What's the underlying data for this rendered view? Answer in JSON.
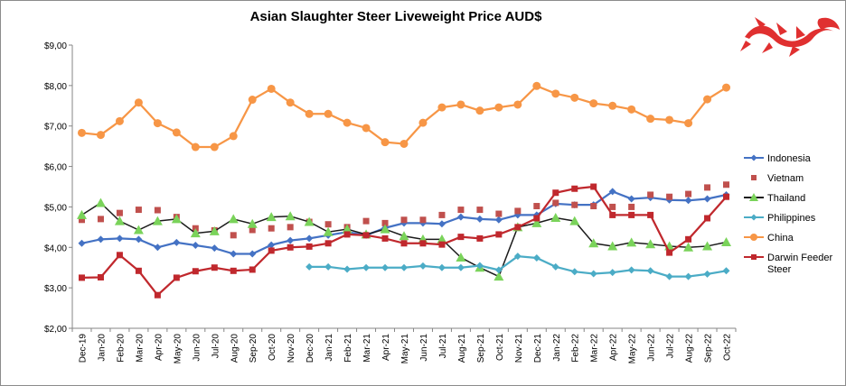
{
  "chart_data": {
    "type": "line",
    "title": "Asian Slaughter Steer Liveweight Price AUD$",
    "xlabel": "",
    "ylabel": "",
    "ylim": [
      2,
      9
    ],
    "ytick_labels": [
      "$2,00",
      "$3,00",
      "$4,00",
      "$5,00",
      "$6,00",
      "$7,00",
      "$8,00",
      "$9,00"
    ],
    "grid": false,
    "legend_position": "right",
    "categories": [
      "Dec-19",
      "Jan-20",
      "Feb-20",
      "Mar-20",
      "Apr-20",
      "May-20",
      "Jun-20",
      "Jul-20",
      "Aug-20",
      "Sep-20",
      "Oct-20",
      "Nov-20",
      "Dec-20",
      "Jan-21",
      "Feb-21",
      "Mar-21",
      "Apr-21",
      "May-21",
      "Jun-21",
      "Jul-21",
      "Aug-21",
      "Sep-21",
      "Oct-21",
      "Nov-21",
      "Dec-21",
      "Jan-22",
      "Feb-22",
      "Mar-22",
      "Apr-22",
      "May-22",
      "Jun-22",
      "Jul-22",
      "Aug-22",
      "Sep-22",
      "Oct-22"
    ],
    "series": [
      {
        "name": "Indonesia",
        "color": "#4472c4",
        "marker": "diamond",
        "line": true,
        "values": [
          4.1,
          4.2,
          4.22,
          4.2,
          4.0,
          4.12,
          4.05,
          3.98,
          3.84,
          3.84,
          4.06,
          4.17,
          4.22,
          4.3,
          4.38,
          4.3,
          4.48,
          4.6,
          4.6,
          4.58,
          4.75,
          4.7,
          4.68,
          4.8,
          4.8,
          5.08,
          5.05,
          5.05,
          5.38,
          5.2,
          5.23,
          5.17,
          5.16,
          5.2,
          5.3
        ]
      },
      {
        "name": "Vietnam",
        "color": "#c0504d",
        "marker": "square",
        "line": false,
        "values": [
          4.68,
          4.7,
          4.85,
          4.93,
          4.92,
          4.75,
          4.47,
          4.42,
          4.3,
          4.43,
          4.47,
          4.5,
          4.63,
          4.57,
          4.5,
          4.65,
          4.6,
          4.68,
          4.68,
          4.8,
          4.93,
          4.93,
          4.83,
          4.9,
          5.02,
          5.1,
          5.05,
          5.02,
          5.0,
          5.0,
          5.3,
          5.25,
          5.32,
          5.48,
          5.55
        ]
      },
      {
        "name": "Thailand",
        "color": "#7ad35a",
        "marker": "triangle",
        "line": true,
        "values": [
          4.8,
          5.1,
          4.65,
          4.43,
          4.65,
          4.7,
          4.35,
          4.4,
          4.7,
          4.58,
          4.75,
          4.77,
          4.63,
          4.38,
          4.45,
          4.32,
          4.45,
          4.28,
          4.2,
          4.2,
          3.75,
          3.5,
          3.28,
          4.5,
          4.6,
          4.73,
          4.65,
          4.1,
          4.03,
          4.12,
          4.08,
          4.03,
          4.0,
          4.03,
          4.13
        ]
      },
      {
        "name": "Philippines",
        "color": "#4bacc6",
        "marker": "diamond",
        "line": true,
        "values": [
          null,
          null,
          null,
          null,
          null,
          null,
          null,
          null,
          null,
          null,
          null,
          null,
          3.52,
          3.52,
          3.46,
          3.5,
          3.5,
          3.5,
          3.54,
          3.5,
          3.5,
          3.55,
          3.44,
          3.78,
          3.74,
          3.52,
          3.4,
          3.35,
          3.38,
          3.44,
          3.42,
          3.28,
          3.28,
          3.34,
          3.42
        ]
      },
      {
        "name": "China",
        "color": "#f79646",
        "marker": "circle",
        "line": true,
        "values": [
          6.83,
          6.78,
          7.12,
          7.58,
          7.07,
          6.84,
          6.48,
          6.48,
          6.75,
          7.65,
          7.92,
          7.58,
          7.3,
          7.3,
          7.08,
          6.95,
          6.6,
          6.56,
          7.08,
          7.46,
          7.53,
          7.38,
          7.46,
          7.53,
          7.99,
          7.8,
          7.7,
          7.56,
          7.5,
          7.41,
          7.18,
          7.15,
          7.07,
          7.66,
          7.95
        ]
      },
      {
        "name": "Darwin Feeder Steer",
        "color": "#c0282d",
        "marker": "square",
        "line": true,
        "values": [
          3.25,
          3.26,
          3.81,
          3.42,
          2.82,
          3.25,
          3.41,
          3.5,
          3.42,
          3.45,
          3.92,
          4.0,
          4.02,
          4.1,
          4.32,
          4.3,
          4.22,
          4.1,
          4.1,
          4.07,
          4.26,
          4.22,
          4.32,
          4.5,
          4.72,
          5.35,
          5.45,
          5.5,
          4.8,
          4.8,
          4.8,
          3.87,
          4.2,
          4.72,
          5.25
        ]
      }
    ]
  },
  "logo": {
    "name": "red-dragon-logo",
    "color": "#e03030"
  }
}
